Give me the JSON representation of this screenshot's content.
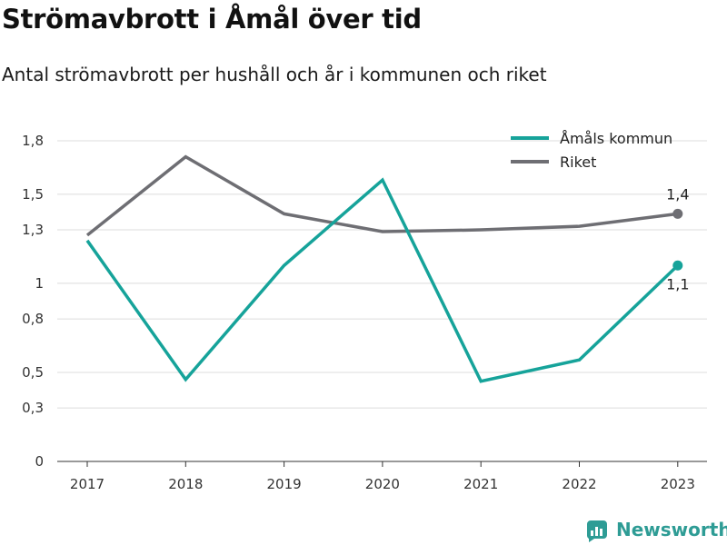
{
  "title": "Strömavbrott i Åmål över tid",
  "subtitle": "Antal strömavbrott per hushåll och år i kommunen och riket",
  "brand": {
    "name": "Newsworthy",
    "icon": "newsworthy-logo-icon"
  },
  "chart_data": {
    "type": "line",
    "categories": [
      "2017",
      "2018",
      "2019",
      "2020",
      "2021",
      "2022",
      "2023"
    ],
    "ylim": [
      0,
      1.8
    ],
    "yticks": [
      0,
      0.3,
      0.5,
      0.8,
      1,
      1.3,
      1.5,
      1.8
    ],
    "ytick_labels": [
      "0",
      "0,3",
      "0,5",
      "0,8",
      "1",
      "1,3",
      "1,5",
      "1,8"
    ],
    "grid": true,
    "legend": "top-right",
    "series": [
      {
        "name": "Åmåls kommun",
        "color": "#16a39a",
        "values": [
          1.24,
          0.46,
          1.1,
          1.58,
          0.45,
          0.57,
          1.1
        ],
        "end_label": "1,1"
      },
      {
        "name": "Riket",
        "color": "#6e6e73",
        "values": [
          1.27,
          1.71,
          1.39,
          1.29,
          1.3,
          1.32,
          1.39
        ],
        "end_label": "1,4"
      }
    ]
  }
}
